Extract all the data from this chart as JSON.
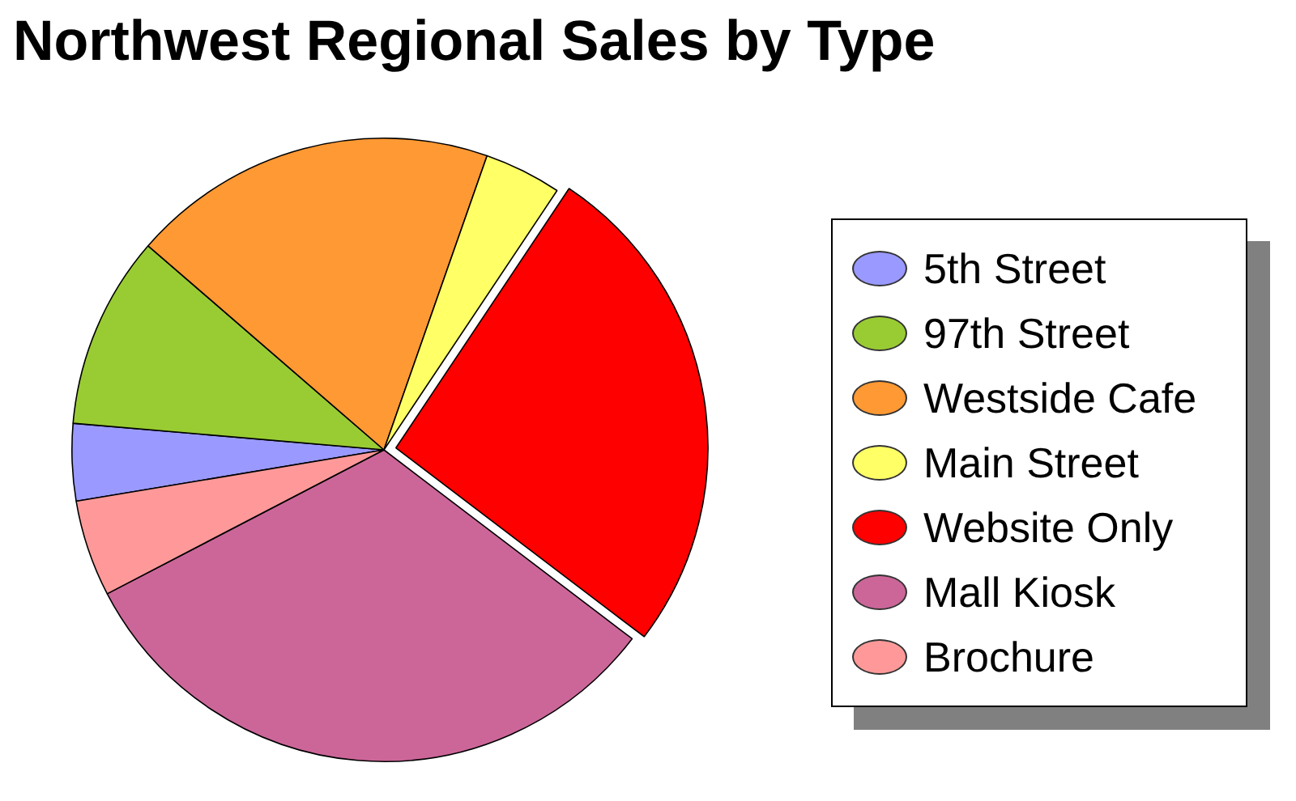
{
  "chart_data": {
    "type": "pie",
    "title": "Northwest Regional Sales by Type",
    "categories": [
      "5th Street",
      "97th Street",
      "Westside Cafe",
      "Main Street",
      "Website Only",
      "Mall Kiosk",
      "Brochure"
    ],
    "values": [
      4,
      10,
      19,
      4,
      26,
      32,
      5
    ],
    "colors": [
      "#9999ff",
      "#99cc33",
      "#ff9933",
      "#ffff66",
      "#ff0000",
      "#cc6699",
      "#ff9999"
    ],
    "legend": "right"
  }
}
